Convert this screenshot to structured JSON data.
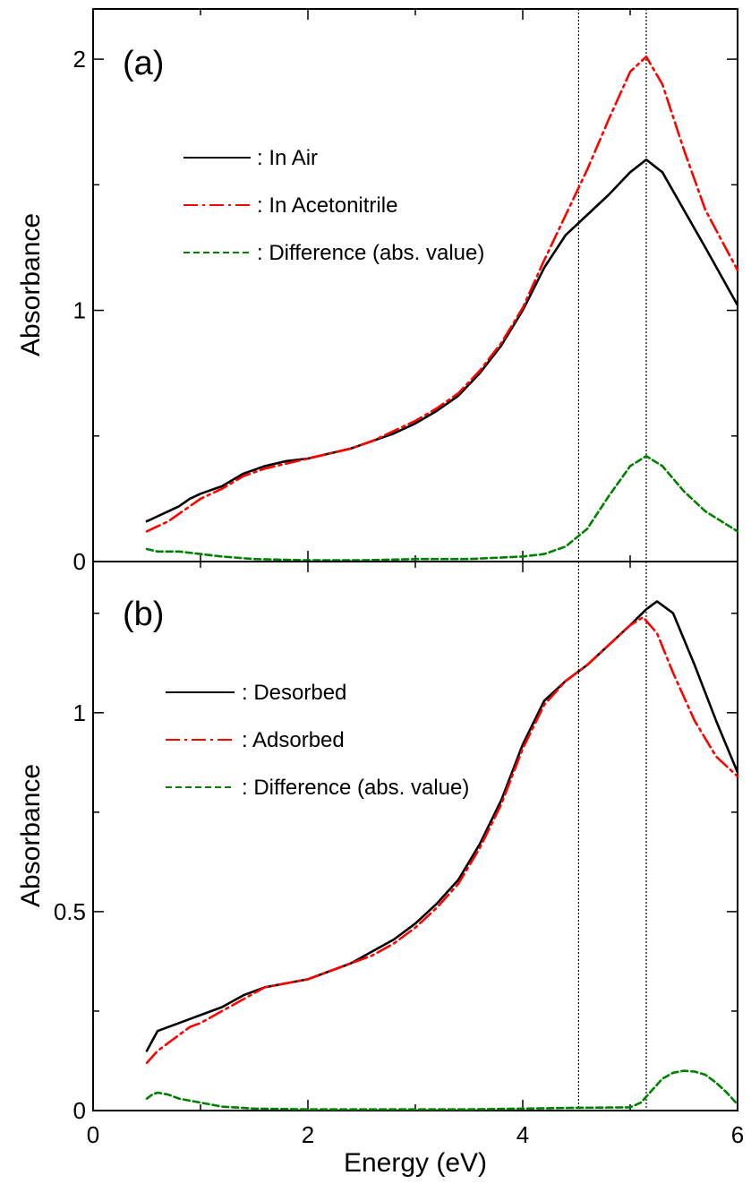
{
  "chart_data": [
    {
      "type": "line",
      "panel_label": "(a)",
      "xlabel": "",
      "ylabel": "Absorbance",
      "xlim": [
        0,
        6
      ],
      "ylim": [
        0,
        2.2
      ],
      "x_ticks": [
        0,
        2,
        4,
        6
      ],
      "y_ticks": [
        0,
        1,
        2
      ],
      "y_tick_labels": [
        "0",
        "1",
        "2"
      ],
      "reference_lines_x": [
        4.52,
        5.15
      ],
      "legend_position": "upper-left",
      "series": [
        {
          "name": ": In Air",
          "color": "#000000",
          "dash": "solid",
          "x": [
            0.5,
            0.6,
            0.7,
            0.8,
            0.9,
            1.0,
            1.2,
            1.4,
            1.6,
            1.8,
            2.0,
            2.2,
            2.4,
            2.6,
            2.8,
            3.0,
            3.2,
            3.4,
            3.6,
            3.8,
            4.0,
            4.2,
            4.4,
            4.6,
            4.8,
            5.0,
            5.15,
            5.3,
            5.5,
            5.7,
            6.0
          ],
          "y": [
            0.16,
            0.18,
            0.2,
            0.22,
            0.25,
            0.27,
            0.3,
            0.35,
            0.38,
            0.4,
            0.41,
            0.43,
            0.45,
            0.48,
            0.51,
            0.55,
            0.6,
            0.66,
            0.75,
            0.86,
            1.0,
            1.17,
            1.3,
            1.38,
            1.46,
            1.55,
            1.6,
            1.55,
            1.4,
            1.25,
            1.02
          ]
        },
        {
          "name": ": In Acetonitrile",
          "color": "#ff0000",
          "dash": "dash-dot",
          "x": [
            0.5,
            0.6,
            0.7,
            0.8,
            0.9,
            1.0,
            1.2,
            1.4,
            1.6,
            1.8,
            2.0,
            2.2,
            2.4,
            2.6,
            2.8,
            3.0,
            3.2,
            3.4,
            3.6,
            3.8,
            4.0,
            4.2,
            4.4,
            4.6,
            4.8,
            5.0,
            5.15,
            5.3,
            5.5,
            5.7,
            6.0
          ],
          "y": [
            0.12,
            0.14,
            0.16,
            0.19,
            0.22,
            0.25,
            0.29,
            0.34,
            0.37,
            0.39,
            0.41,
            0.43,
            0.45,
            0.48,
            0.52,
            0.56,
            0.61,
            0.67,
            0.76,
            0.87,
            1.01,
            1.2,
            1.38,
            1.56,
            1.76,
            1.95,
            2.01,
            1.9,
            1.64,
            1.4,
            1.16
          ]
        },
        {
          "name": ": Difference (abs. value)",
          "color": "#008000",
          "dash": "dashed",
          "x": [
            0.5,
            0.6,
            0.8,
            1.0,
            1.2,
            1.5,
            2.0,
            2.5,
            3.0,
            3.5,
            4.0,
            4.2,
            4.4,
            4.6,
            4.8,
            5.0,
            5.15,
            5.3,
            5.5,
            5.7,
            6.0
          ],
          "y": [
            0.05,
            0.04,
            0.04,
            0.03,
            0.02,
            0.01,
            0.005,
            0.005,
            0.01,
            0.01,
            0.02,
            0.03,
            0.06,
            0.13,
            0.26,
            0.38,
            0.42,
            0.38,
            0.28,
            0.2,
            0.12
          ]
        }
      ]
    },
    {
      "type": "line",
      "panel_label": "(b)",
      "xlabel": "Energy (eV)",
      "ylabel": "Absorbance",
      "xlim": [
        0,
        6
      ],
      "ylim": [
        0,
        1.38
      ],
      "x_ticks": [
        0,
        2,
        4,
        6
      ],
      "x_tick_labels": [
        "0",
        "2",
        "4",
        "6"
      ],
      "y_ticks": [
        0,
        0.5,
        1
      ],
      "y_tick_labels": [
        "0",
        "0.5",
        "1"
      ],
      "reference_lines_x": [
        4.52,
        5.15
      ],
      "legend_position": "upper-left",
      "series": [
        {
          "name": ": Desorbed",
          "color": "#000000",
          "dash": "solid",
          "x": [
            0.5,
            0.6,
            0.7,
            0.8,
            0.9,
            1.0,
            1.2,
            1.4,
            1.6,
            1.8,
            2.0,
            2.2,
            2.4,
            2.6,
            2.8,
            3.0,
            3.2,
            3.4,
            3.6,
            3.8,
            4.0,
            4.2,
            4.4,
            4.6,
            4.8,
            5.0,
            5.15,
            5.25,
            5.4,
            5.6,
            5.8,
            6.0
          ],
          "y": [
            0.15,
            0.2,
            0.21,
            0.22,
            0.23,
            0.24,
            0.26,
            0.29,
            0.31,
            0.32,
            0.33,
            0.35,
            0.37,
            0.4,
            0.43,
            0.47,
            0.52,
            0.58,
            0.67,
            0.78,
            0.92,
            1.03,
            1.08,
            1.12,
            1.17,
            1.22,
            1.26,
            1.28,
            1.25,
            1.12,
            0.98,
            0.85
          ]
        },
        {
          "name": ": Adsorbed",
          "color": "#ff0000",
          "dash": "dash-dot",
          "x": [
            0.5,
            0.6,
            0.7,
            0.8,
            0.9,
            1.0,
            1.2,
            1.4,
            1.6,
            1.8,
            2.0,
            2.2,
            2.4,
            2.6,
            2.8,
            3.0,
            3.2,
            3.4,
            3.6,
            3.8,
            4.0,
            4.2,
            4.4,
            4.6,
            4.8,
            5.0,
            5.12,
            5.25,
            5.4,
            5.6,
            5.8,
            6.0
          ],
          "y": [
            0.12,
            0.15,
            0.17,
            0.19,
            0.21,
            0.22,
            0.25,
            0.28,
            0.31,
            0.32,
            0.33,
            0.35,
            0.37,
            0.39,
            0.42,
            0.46,
            0.51,
            0.57,
            0.66,
            0.77,
            0.91,
            1.02,
            1.08,
            1.12,
            1.17,
            1.22,
            1.24,
            1.2,
            1.1,
            0.98,
            0.89,
            0.84
          ]
        },
        {
          "name": ": Difference (abs. value)",
          "color": "#008000",
          "dash": "dashed",
          "x": [
            0.5,
            0.55,
            0.6,
            0.7,
            0.8,
            1.0,
            1.2,
            1.5,
            2.0,
            2.5,
            3.0,
            3.5,
            4.0,
            4.5,
            5.0,
            5.1,
            5.2,
            5.3,
            5.4,
            5.5,
            5.6,
            5.7,
            5.8,
            5.9,
            6.0
          ],
          "y": [
            0.03,
            0.04,
            0.045,
            0.04,
            0.03,
            0.02,
            0.01,
            0.005,
            0.003,
            0.003,
            0.003,
            0.003,
            0.005,
            0.007,
            0.008,
            0.02,
            0.05,
            0.08,
            0.095,
            0.1,
            0.098,
            0.09,
            0.07,
            0.045,
            0.015
          ]
        }
      ]
    }
  ]
}
